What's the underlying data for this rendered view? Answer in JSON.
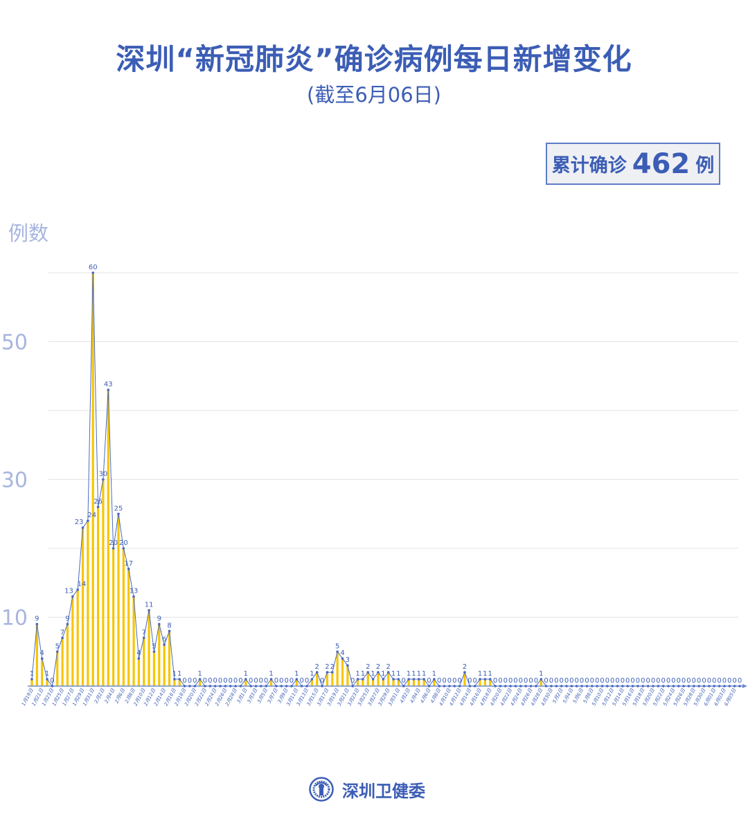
{
  "header": {
    "title": "深圳“新冠肺炎”确诊病例每日新增变化",
    "subtitle": "(截至6月06日)"
  },
  "total": {
    "label": "累计确诊",
    "value": "462",
    "unit": "例"
  },
  "footer": {
    "org_name": "深圳卫健委",
    "logo_icon": "health-commission-seal"
  },
  "colors": {
    "title": "#3b5db5",
    "bar": "#f7c600",
    "line": "#4a69c0",
    "axis_text": "#a7b5df",
    "grid": "#e3e3e3"
  },
  "chart_data": {
    "type": "bar+line",
    "title": "深圳“新冠肺炎”确诊病例每日新增变化",
    "ylabel": "例数",
    "xlabel": "",
    "ylim": [
      0,
      60
    ],
    "yticks_labeled": [
      10,
      30,
      50
    ],
    "gridlines": [
      10,
      20,
      30,
      40,
      50,
      60
    ],
    "grid": true,
    "data_labels": true,
    "categories": [
      "1月19日",
      "1月20日",
      "1月21日",
      "1月22日",
      "1月23日",
      "1月24日",
      "1月25日",
      "1月26日",
      "1月27日",
      "1月28日",
      "1月29日",
      "1月30日",
      "1月31日",
      "2月1日",
      "2月2日",
      "2月3日",
      "2月4日",
      "2月5日",
      "2月6日",
      "2月7日",
      "2月8日",
      "2月9日",
      "2月10日",
      "2月11日",
      "2月12日",
      "2月13日",
      "2月14日",
      "2月15日",
      "2月16日",
      "2月17日",
      "2月18日",
      "2月19日",
      "2月20日",
      "2月21日",
      "2月22日",
      "2月23日",
      "2月24日",
      "2月25日",
      "2月26日",
      "2月27日",
      "2月28日",
      "2月29日",
      "3月1日",
      "3月2日",
      "3月3日",
      "3月4日",
      "3月5日",
      "3月6日",
      "3月7日",
      "3月8日",
      "3月9日",
      "3月10日",
      "3月11日",
      "3月12日",
      "3月13日",
      "3月14日",
      "3月15日",
      "3月16日",
      "3月17日",
      "3月18日",
      "3月19日",
      "3月20日",
      "3月21日",
      "3月22日",
      "3月23日",
      "3月24日",
      "3月25日",
      "3月26日",
      "3月27日",
      "3月28日",
      "3月29日",
      "3月30日",
      "3月31日",
      "4月1日",
      "4月2日",
      "4月3日",
      "4月4日",
      "4月5日",
      "4月6日",
      "4月7日",
      "4月8日",
      "4月9日",
      "4月10日",
      "4月11日",
      "4月12日",
      "4月13日",
      "4月14日",
      "4月15日",
      "4月16日",
      "4月17日",
      "4月18日",
      "4月19日",
      "4月20日",
      "4月21日",
      "4月22日",
      "4月23日",
      "4月24日",
      "4月25日",
      "4月26日",
      "4月27日",
      "4月28日",
      "4月29日",
      "4月30日",
      "5月1日",
      "5月2日",
      "5月3日",
      "5月4日",
      "5月5日",
      "5月6日",
      "5月7日",
      "5月8日",
      "5月9日",
      "5月10日",
      "5月11日",
      "5月12日",
      "5月13日",
      "5月14日",
      "5月15日",
      "5月16日",
      "5月17日",
      "5月18日",
      "5月19日",
      "5月20日",
      "5月21日",
      "5月22日",
      "5月23日",
      "5月24日",
      "5月25日",
      "5月26日",
      "5月27日",
      "5月28日",
      "5月29日",
      "5月30日",
      "5月31日",
      "6月01日",
      "6月02日",
      "6月03日",
      "6月04日",
      "6月05日",
      "6月06日"
    ],
    "values": [
      1,
      9,
      4,
      1,
      0,
      5,
      7,
      9,
      13,
      14,
      23,
      24,
      60,
      26,
      30,
      43,
      20,
      25,
      20,
      17,
      13,
      4,
      7,
      11,
      5,
      9,
      6,
      8,
      1,
      1,
      0,
      0,
      0,
      1,
      0,
      0,
      0,
      0,
      0,
      0,
      0,
      0,
      1,
      0,
      0,
      0,
      0,
      1,
      0,
      0,
      0,
      0,
      1,
      0,
      0,
      1,
      2,
      0,
      2,
      2,
      5,
      4,
      3,
      0,
      1,
      1,
      2,
      1,
      2,
      1,
      2,
      1,
      1,
      0,
      1,
      1,
      1,
      1,
      0,
      1,
      0,
      0,
      0,
      0,
      0,
      2,
      0,
      0,
      1,
      1,
      1,
      0,
      0,
      0,
      0,
      0,
      0,
      0,
      0,
      0,
      1,
      0,
      0,
      0,
      0,
      0,
      0,
      0,
      0,
      0,
      0,
      0,
      0,
      0,
      0,
      0,
      0,
      0,
      0,
      0,
      0,
      0,
      0,
      0,
      0,
      0,
      0,
      0,
      0,
      0,
      0,
      0,
      0,
      0,
      0,
      0,
      0,
      0,
      0,
      0
    ]
  }
}
